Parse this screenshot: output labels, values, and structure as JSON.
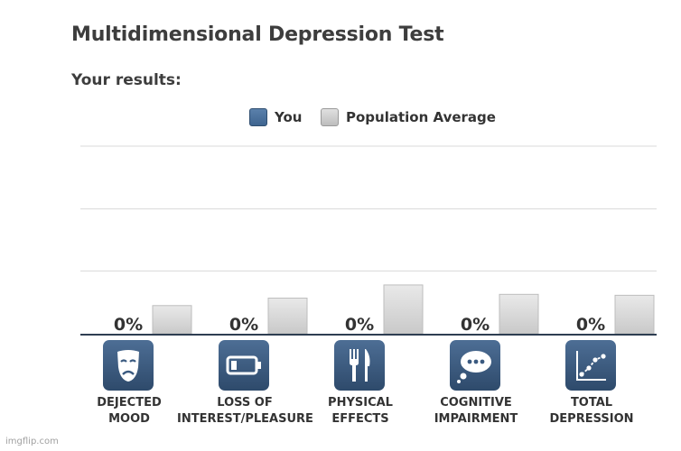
{
  "page": {
    "title": "Multidimensional Depression Test",
    "subtitle": "Your results:",
    "watermark": "imgflip.com"
  },
  "legend": [
    {
      "label": "You",
      "color": "#4a6f98"
    },
    {
      "label": "Population Average",
      "color": "#d2d2d2"
    }
  ],
  "colors": {
    "you_fill": "#4a6f98",
    "average_fill": "#d2d2d2",
    "icon_background": "#3a5a80",
    "gridline": "#d8d8d8",
    "baseline": "#2e3e52"
  },
  "chart_data": {
    "type": "bar",
    "categories": [
      "DEJECTED\nMOOD",
      "LOSS OF\nINTEREST/PLEASURE",
      "PHYSICAL\nEFFECTS",
      "COGNITIVE\nIMPAIRMENT",
      "TOTAL\nDEPRESSION"
    ],
    "series": [
      {
        "name": "You",
        "values": [
          0,
          0,
          0,
          0,
          0
        ],
        "data_labels": [
          "0%",
          "0%",
          "0%",
          "0%",
          "0%"
        ]
      },
      {
        "name": "Population Average",
        "values": [
          15,
          19,
          26,
          21,
          20.5
        ]
      }
    ],
    "ylim": [
      0,
      100
    ],
    "grid": true,
    "legend_position": "top-center"
  },
  "icons": [
    "theater-mask-icon",
    "low-battery-icon",
    "fork-knife-icon",
    "thought-bubble-icon",
    "line-graph-icon"
  ]
}
